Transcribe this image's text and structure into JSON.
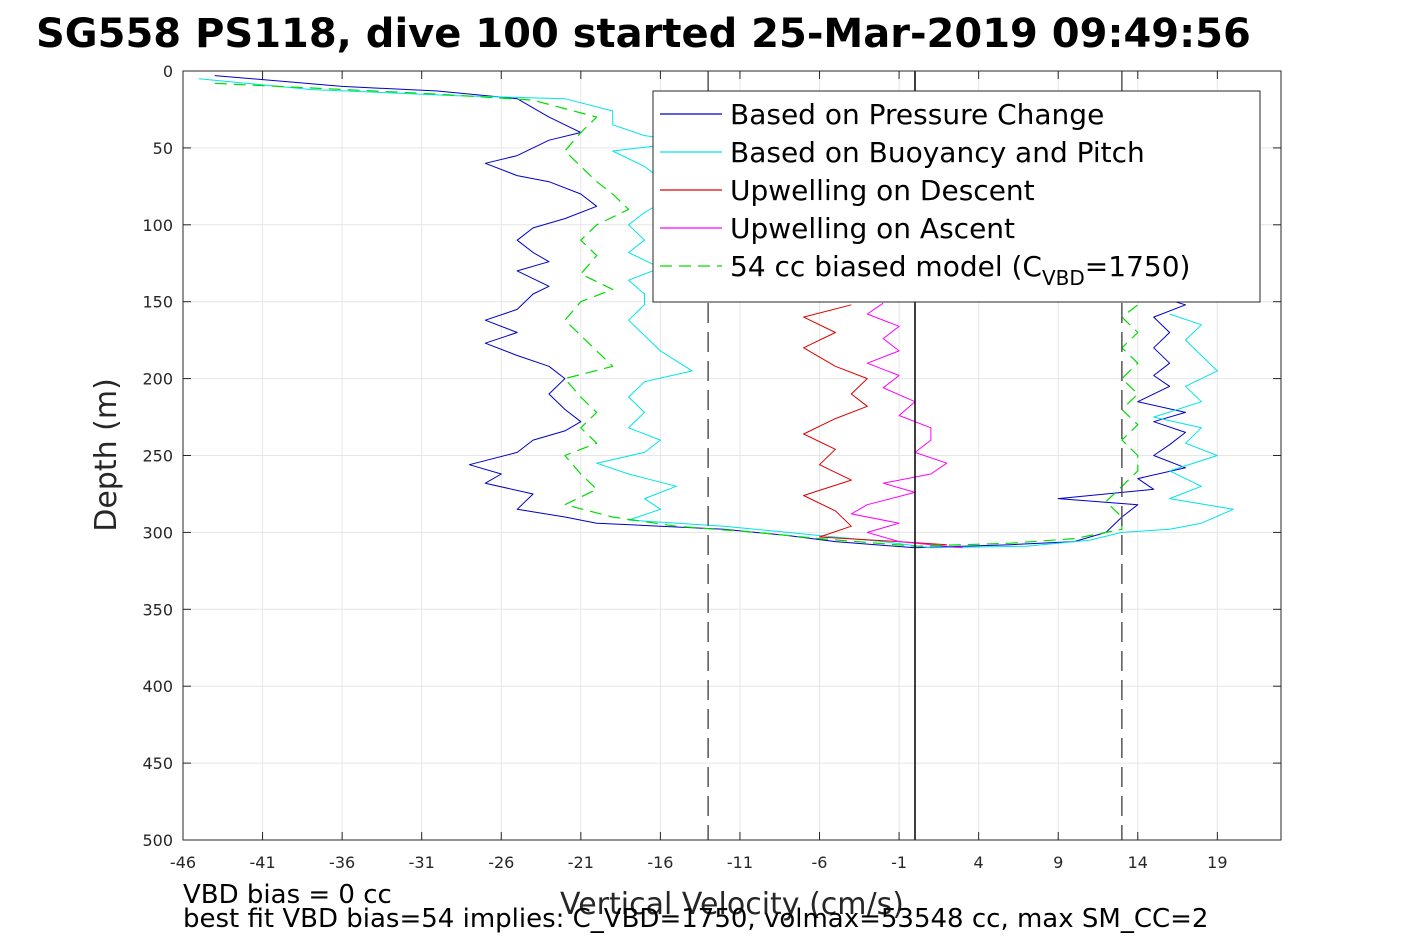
{
  "chart_data": {
    "type": "line",
    "title": "SG558 PS118, dive 100 started 25-Mar-2019 09:49:56",
    "xlabel": "Vertical Velocity (cm/s)",
    "ylabel": "Depth (m)",
    "xlim": [
      -46,
      23
    ],
    "ylim": [
      0,
      500
    ],
    "y_reversed": true,
    "grid": true,
    "x_ticks": [
      -46,
      -41,
      -36,
      -31,
      -26,
      -21,
      -16,
      -11,
      -6,
      -1,
      4,
      9,
      14,
      19
    ],
    "y_ticks": [
      0,
      50,
      100,
      150,
      200,
      250,
      300,
      350,
      400,
      450,
      500
    ],
    "legend_position": "top-right",
    "reference_lines": [
      {
        "orientation": "vertical",
        "x": -13,
        "style": "dashed",
        "color": "#555555"
      },
      {
        "orientation": "vertical",
        "x": 0,
        "style": "solid",
        "color": "#000000"
      },
      {
        "orientation": "vertical",
        "x": 13,
        "style": "dashed",
        "color": "#555555"
      }
    ],
    "series": [
      {
        "name": "Based on Pressure Change",
        "color": "#0000cc",
        "dash": "",
        "width": 1,
        "points": [
          [
            -44,
            3
          ],
          [
            -36,
            10
          ],
          [
            -30,
            13
          ],
          [
            -25,
            18
          ],
          [
            -23,
            30
          ],
          [
            -21,
            40
          ],
          [
            -23,
            45
          ],
          [
            -25,
            55
          ],
          [
            -27,
            60
          ],
          [
            -25,
            68
          ],
          [
            -23,
            72
          ],
          [
            -21,
            80
          ],
          [
            -20,
            88
          ],
          [
            -22,
            96
          ],
          [
            -24,
            102
          ],
          [
            -25,
            110
          ],
          [
            -24,
            118
          ],
          [
            -23,
            124
          ],
          [
            -25,
            130
          ],
          [
            -23,
            140
          ],
          [
            -24,
            145
          ],
          [
            -25,
            155
          ],
          [
            -27,
            162
          ],
          [
            -25,
            170
          ],
          [
            -27,
            177
          ],
          [
            -25,
            185
          ],
          [
            -23,
            192
          ],
          [
            -22,
            200
          ],
          [
            -23,
            210
          ],
          [
            -22,
            220
          ],
          [
            -21,
            228
          ],
          [
            -22,
            234
          ],
          [
            -24,
            240
          ],
          [
            -25,
            248
          ],
          [
            -28,
            256
          ],
          [
            -26,
            262
          ],
          [
            -27,
            268
          ],
          [
            -24,
            275
          ],
          [
            -25,
            285
          ],
          [
            -22,
            290
          ],
          [
            -20,
            294
          ],
          [
            -16,
            296
          ],
          [
            -12,
            298
          ],
          [
            -8,
            302
          ],
          [
            -5,
            306
          ],
          [
            0,
            310
          ],
          [
            6,
            308
          ],
          [
            10,
            306
          ],
          [
            12,
            300
          ],
          [
            13,
            290
          ],
          [
            14,
            282
          ],
          [
            9,
            278
          ],
          [
            15,
            272
          ],
          [
            14,
            265
          ],
          [
            17,
            258
          ],
          [
            15,
            250
          ],
          [
            16,
            243
          ],
          [
            17,
            235
          ],
          [
            15,
            228
          ],
          [
            17,
            222
          ],
          [
            14,
            215
          ],
          [
            16,
            205
          ],
          [
            15,
            198
          ],
          [
            16,
            190
          ],
          [
            15,
            180
          ],
          [
            16,
            170
          ],
          [
            15,
            160
          ],
          [
            17,
            152
          ],
          [
            15,
            146
          ]
        ]
      },
      {
        "name": "Based on Buoyancy and Pitch",
        "color": "#00e5e5",
        "dash": "",
        "width": 1,
        "points": [
          [
            -45,
            5
          ],
          [
            -38,
            12
          ],
          [
            -29,
            16
          ],
          [
            -22,
            18
          ],
          [
            -19,
            26
          ],
          [
            -19,
            35
          ],
          [
            -17,
            42
          ],
          [
            -14,
            46
          ],
          [
            -19,
            52
          ],
          [
            -17,
            62
          ],
          [
            -16,
            70
          ],
          [
            -15,
            78
          ],
          [
            -16,
            86
          ],
          [
            -17,
            92
          ],
          [
            -18,
            100
          ],
          [
            -17,
            110
          ],
          [
            -18,
            118
          ],
          [
            -16,
            128
          ],
          [
            -18,
            136
          ],
          [
            -17,
            145
          ],
          [
            -17,
            152
          ],
          [
            -18,
            162
          ],
          [
            -17,
            172
          ],
          [
            -16,
            182
          ],
          [
            -14,
            195
          ],
          [
            -17,
            202
          ],
          [
            -18,
            212
          ],
          [
            -17,
            222
          ],
          [
            -18,
            232
          ],
          [
            -16,
            240
          ],
          [
            -17,
            248
          ],
          [
            -20,
            255
          ],
          [
            -18,
            262
          ],
          [
            -15,
            270
          ],
          [
            -17,
            278
          ],
          [
            -16,
            285
          ],
          [
            -18,
            292
          ],
          [
            -12,
            296
          ],
          [
            -6,
            302
          ],
          [
            -2,
            306
          ],
          [
            1,
            310
          ],
          [
            7,
            309
          ],
          [
            11,
            305
          ],
          [
            13,
            300
          ],
          [
            16,
            298
          ],
          [
            18,
            294
          ],
          [
            20,
            285
          ],
          [
            16,
            278
          ],
          [
            18,
            270
          ],
          [
            16,
            260
          ],
          [
            19,
            250
          ],
          [
            17,
            242
          ],
          [
            18,
            232
          ],
          [
            15,
            225
          ],
          [
            18,
            215
          ],
          [
            17,
            205
          ],
          [
            19,
            195
          ],
          [
            18,
            185
          ],
          [
            17,
            175
          ],
          [
            18,
            165
          ],
          [
            16,
            158
          ]
        ]
      },
      {
        "name": "Upwelling on Descent",
        "color": "#e00000",
        "dash": "",
        "width": 1,
        "points": [
          [
            -4,
            152
          ],
          [
            -7,
            160
          ],
          [
            -5,
            170
          ],
          [
            -7,
            180
          ],
          [
            -5,
            192
          ],
          [
            -3,
            200
          ],
          [
            -4,
            210
          ],
          [
            -3,
            218
          ],
          [
            -5,
            226
          ],
          [
            -7,
            236
          ],
          [
            -5,
            246
          ],
          [
            -6,
            256
          ],
          [
            -4,
            266
          ],
          [
            -7,
            276
          ],
          [
            -5,
            286
          ],
          [
            -4,
            296
          ],
          [
            -6,
            303
          ],
          [
            -1,
            306
          ],
          [
            2,
            308
          ]
        ]
      },
      {
        "name": "Upwelling on Ascent",
        "color": "#ff00ff",
        "dash": "",
        "width": 1,
        "points": [
          [
            3,
            310
          ],
          [
            -1,
            306
          ],
          [
            -3,
            300
          ],
          [
            -1,
            294
          ],
          [
            -4,
            288
          ],
          [
            -3,
            282
          ],
          [
            0,
            274
          ],
          [
            -2,
            268
          ],
          [
            1,
            262
          ],
          [
            2,
            255
          ],
          [
            0,
            248
          ],
          [
            1,
            240
          ],
          [
            1,
            232
          ],
          [
            -1,
            224
          ],
          [
            0,
            215
          ],
          [
            -2,
            206
          ],
          [
            -1,
            198
          ],
          [
            -3,
            190
          ],
          [
            -1,
            182
          ],
          [
            -2,
            174
          ],
          [
            -1,
            166
          ],
          [
            -3,
            158
          ],
          [
            -2,
            151
          ]
        ]
      },
      {
        "name": "54 cc biased model (C_VBD=1750)",
        "color": "#00dd00",
        "dash": "12,7",
        "width": 1.2,
        "points": [
          [
            -44,
            8
          ],
          [
            -30,
            15
          ],
          [
            -24,
            19
          ],
          [
            -20,
            30
          ],
          [
            -21,
            40
          ],
          [
            -22,
            52
          ],
          [
            -21,
            62
          ],
          [
            -20,
            72
          ],
          [
            -19,
            80
          ],
          [
            -18,
            90
          ],
          [
            -20,
            100
          ],
          [
            -21,
            110
          ],
          [
            -20,
            120
          ],
          [
            -21,
            132
          ],
          [
            -19,
            142
          ],
          [
            -21,
            150
          ],
          [
            -22,
            162
          ],
          [
            -21,
            172
          ],
          [
            -20,
            182
          ],
          [
            -19,
            192
          ],
          [
            -22,
            200
          ],
          [
            -21,
            212
          ],
          [
            -20,
            222
          ],
          [
            -21,
            232
          ],
          [
            -20,
            242
          ],
          [
            -22,
            250
          ],
          [
            -21,
            262
          ],
          [
            -20,
            272
          ],
          [
            -22,
            282
          ],
          [
            -19,
            290
          ],
          [
            -15,
            296
          ],
          [
            -10,
            300
          ],
          [
            -6,
            304
          ],
          [
            0,
            309
          ],
          [
            6,
            307
          ],
          [
            10,
            304
          ],
          [
            13,
            298
          ],
          [
            13,
            290
          ],
          [
            12,
            280
          ],
          [
            13,
            270
          ],
          [
            14,
            260
          ],
          [
            14,
            250
          ],
          [
            13,
            240
          ],
          [
            14,
            230
          ],
          [
            13,
            220
          ],
          [
            14,
            210
          ],
          [
            13,
            200
          ],
          [
            14,
            190
          ],
          [
            13,
            180
          ],
          [
            14,
            170
          ],
          [
            13,
            160
          ],
          [
            14,
            152
          ]
        ]
      }
    ]
  },
  "legend": {
    "entries": [
      {
        "label": "Based on Pressure Change",
        "color": "#0000cc",
        "dash": ""
      },
      {
        "label": "Based on Buoyancy and Pitch",
        "color": "#00e5e5",
        "dash": ""
      },
      {
        "label": "Upwelling on Descent",
        "color": "#e00000",
        "dash": ""
      },
      {
        "label": "Upwelling on Ascent",
        "color": "#ff00ff",
        "dash": ""
      },
      {
        "label": "54 cc biased model (C",
        "label_sub": "VBD",
        "label_tail": "=1750)",
        "color": "#00dd00",
        "dash": "12,7"
      }
    ]
  },
  "notes": {
    "line1": "VBD bias = 0 cc",
    "line2": "best fit VBD bias=54 implies: C_VBD=1750, volmax=53548 cc, max SM_CC=2"
  }
}
